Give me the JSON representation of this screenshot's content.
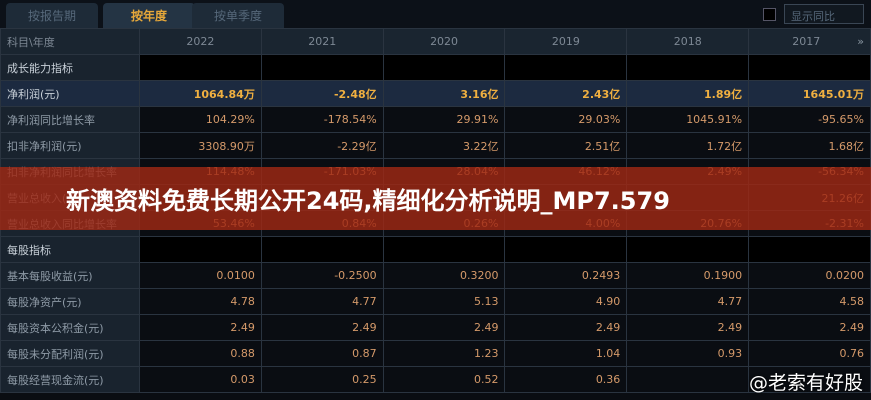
{
  "tabs": [
    "按报告期",
    "按年度",
    "按单季度"
  ],
  "active_tab": 1,
  "show_yoy_label": "显示同比",
  "header": {
    "label": "科目\\年度",
    "years": [
      "2022",
      "2021",
      "2020",
      "2019",
      "2018",
      "2017"
    ],
    "more_icon": "»"
  },
  "rows": [
    {
      "label": "成长能力指标",
      "type": "sec",
      "values": [
        "",
        "",
        "",
        "",
        "",
        ""
      ]
    },
    {
      "label": "净利润(元)",
      "type": "hl",
      "values": [
        "1064.84万",
        "-2.48亿",
        "3.16亿",
        "2.43亿",
        "1.89亿",
        "1645.01万"
      ]
    },
    {
      "label": "净利润同比增长率",
      "type": "",
      "values": [
        "104.29%",
        "-178.54%",
        "29.91%",
        "29.03%",
        "1045.91%",
        "-95.65%"
      ]
    },
    {
      "label": "扣非净利润(元)",
      "type": "",
      "values": [
        "3308.90万",
        "-2.29亿",
        "3.22亿",
        "2.51亿",
        "1.72亿",
        "1.68亿"
      ]
    },
    {
      "label": "扣非净利润同比增长率",
      "type": "",
      "values": [
        "114.48%",
        "-171.03%",
        "28.04%",
        "46.12%",
        "2.49%",
        "-56.34%"
      ]
    },
    {
      "label": "营业总收入(元)",
      "type": "",
      "values": [
        "",
        "",
        "",
        "",
        "",
        "21.26亿"
      ]
    },
    {
      "label": "营业总收入同比增长率",
      "type": "",
      "values": [
        "53.46%",
        "0.84%",
        "0.26%",
        "4.00%",
        "20.76%",
        "-2.31%"
      ]
    },
    {
      "label": "每股指标",
      "type": "sec",
      "values": [
        "",
        "",
        "",
        "",
        "",
        ""
      ]
    },
    {
      "label": "基本每股收益(元)",
      "type": "",
      "values": [
        "0.0100",
        "-0.2500",
        "0.3200",
        "0.2493",
        "0.1900",
        "0.0200"
      ]
    },
    {
      "label": "每股净资产(元)",
      "type": "",
      "values": [
        "4.78",
        "4.77",
        "5.13",
        "4.90",
        "4.77",
        "4.58"
      ]
    },
    {
      "label": "每股资本公积金(元)",
      "type": "",
      "values": [
        "2.49",
        "2.49",
        "2.49",
        "2.49",
        "2.49",
        "2.49"
      ]
    },
    {
      "label": "每股未分配利润(元)",
      "type": "",
      "values": [
        "0.88",
        "0.87",
        "1.23",
        "1.04",
        "0.93",
        "0.76"
      ]
    },
    {
      "label": "每股经营现金流(元)",
      "type": "",
      "values": [
        "0.03",
        "0.25",
        "0.52",
        "0.36",
        "",
        ""
      ]
    }
  ],
  "banner": "新澳资料免费长期公开24码,精细化分析说明_MP7.579",
  "watermark": "@老索有好股"
}
